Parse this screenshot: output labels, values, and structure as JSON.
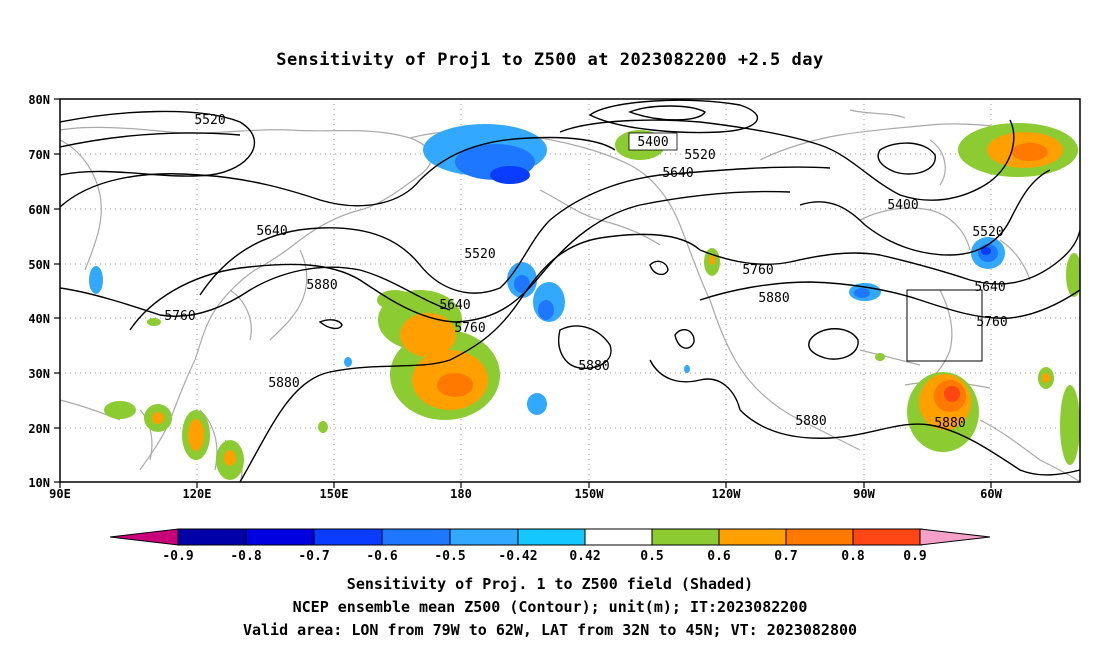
{
  "title": "Sensitivity of Proj1 to Z500 at 2023082200 +2.5 day",
  "map": {
    "lat_labels": [
      "80N",
      "70N",
      "60N",
      "50N",
      "40N",
      "30N",
      "20N",
      "10N"
    ],
    "lon_labels": [
      "90E",
      "120E",
      "150E",
      "180",
      "150W",
      "120W",
      "90W",
      "60W"
    ],
    "contour_labels": [
      "5520",
      "5400",
      "5520",
      "5640",
      "5400",
      "5520",
      "5640",
      "5520",
      "5760",
      "5880",
      "5640",
      "5760",
      "5880",
      "5760",
      "5880",
      "5640",
      "5760",
      "5880",
      "5880",
      "5880"
    ],
    "valid_area_box": "79W-62W, 32N-45N"
  },
  "colorbar": {
    "labels": [
      "-0.9",
      "-0.8",
      "-0.7",
      "-0.6",
      "-0.5",
      "-0.42",
      "0.42",
      "0.5",
      "0.6",
      "0.7",
      "0.8",
      "0.9"
    ],
    "colors": [
      "#c8007a",
      "#0000a8",
      "#0000e0",
      "#0a3cff",
      "#1e78ff",
      "#32a8ff",
      "#14c8ff",
      "#ffffff",
      "#8ccc32",
      "#ffa000",
      "#ff7800",
      "#ff4614",
      "#ff0000",
      "#f5a0c8"
    ]
  },
  "footer": {
    "line1": "Sensitivity of Proj. 1 to Z500 field (Shaded)",
    "line2": "NCEP ensemble mean Z500 (Contour); unit(m); IT:2023082200",
    "line3": "Valid area: LON from 79W to 62W, LAT from 32N to 45N; VT: 2023082800"
  }
}
